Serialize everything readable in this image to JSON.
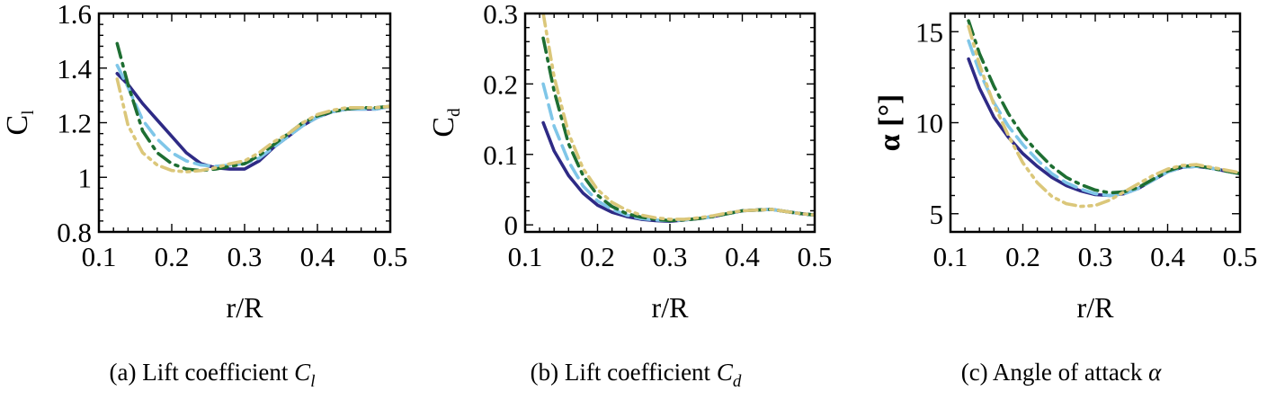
{
  "chart_data": [
    {
      "type": "line",
      "caption": "(a) Lift coefficient C_l",
      "caption_parts": {
        "prefix": "(a) Lift coefficient ",
        "symbol": "C",
        "subscript": "l"
      },
      "xlabel": "r/R",
      "ylabel": "C",
      "ylabel_sub": "l",
      "xlim": [
        0.1,
        0.5
      ],
      "ylim": [
        0.8,
        1.6
      ],
      "xticks": [
        "0.1",
        "0.2",
        "0.3",
        "0.4",
        "0.5"
      ],
      "yticks": [
        "0.8",
        "1",
        "1.2",
        "1.4",
        "1.6"
      ],
      "grid": false,
      "series": [
        {
          "style": "solid",
          "color": "#2e2a85",
          "x": [
            0.125,
            0.14,
            0.16,
            0.18,
            0.2,
            0.22,
            0.24,
            0.26,
            0.28,
            0.3,
            0.32,
            0.34,
            0.36,
            0.38,
            0.4,
            0.42,
            0.44,
            0.46,
            0.48,
            0.5
          ],
          "y": [
            1.38,
            1.34,
            1.27,
            1.21,
            1.15,
            1.09,
            1.05,
            1.035,
            1.03,
            1.03,
            1.06,
            1.11,
            1.15,
            1.19,
            1.22,
            1.24,
            1.25,
            1.25,
            1.25,
            1.26
          ]
        },
        {
          "style": "dashed",
          "color": "#7fc6e8",
          "x": [
            0.125,
            0.14,
            0.16,
            0.18,
            0.2,
            0.22,
            0.24,
            0.26,
            0.28,
            0.3,
            0.32,
            0.34,
            0.36,
            0.38,
            0.4,
            0.42,
            0.44,
            0.46,
            0.48,
            0.5
          ],
          "y": [
            1.41,
            1.33,
            1.21,
            1.14,
            1.09,
            1.06,
            1.045,
            1.04,
            1.045,
            1.05,
            1.07,
            1.11,
            1.15,
            1.19,
            1.22,
            1.24,
            1.25,
            1.25,
            1.25,
            1.26
          ]
        },
        {
          "style": "dashdot",
          "color": "#1e6e32",
          "x": [
            0.125,
            0.14,
            0.16,
            0.18,
            0.2,
            0.22,
            0.24,
            0.26,
            0.28,
            0.3,
            0.32,
            0.34,
            0.36,
            0.38,
            0.4,
            0.42,
            0.44,
            0.46,
            0.48,
            0.5
          ],
          "y": [
            1.49,
            1.34,
            1.17,
            1.09,
            1.05,
            1.03,
            1.025,
            1.03,
            1.04,
            1.05,
            1.08,
            1.12,
            1.16,
            1.2,
            1.225,
            1.24,
            1.25,
            1.255,
            1.255,
            1.26
          ]
        },
        {
          "style": "dashdotdot",
          "color": "#dbc77a",
          "x": [
            0.125,
            0.14,
            0.16,
            0.18,
            0.2,
            0.22,
            0.24,
            0.26,
            0.28,
            0.3,
            0.32,
            0.34,
            0.36,
            0.38,
            0.4,
            0.42,
            0.44,
            0.46,
            0.48,
            0.5
          ],
          "y": [
            1.36,
            1.19,
            1.09,
            1.045,
            1.025,
            1.02,
            1.025,
            1.035,
            1.05,
            1.06,
            1.09,
            1.13,
            1.16,
            1.2,
            1.23,
            1.245,
            1.255,
            1.255,
            1.255,
            1.26
          ]
        }
      ]
    },
    {
      "type": "line",
      "caption": "(b) Lift coefficient C_d",
      "caption_parts": {
        "prefix": "(b) Lift coefficient ",
        "symbol": "C",
        "subscript": "d"
      },
      "xlabel": "r/R",
      "ylabel": "C",
      "ylabel_sub": "d",
      "xlim": [
        0.1,
        0.5
      ],
      "ylim": [
        -0.01,
        0.3
      ],
      "xticks": [
        "0.1",
        "0.2",
        "0.3",
        "0.4",
        "0.5"
      ],
      "yticks": [
        "0",
        "0.1",
        "0.2",
        "0.3"
      ],
      "ytick_values": [
        0,
        0.1,
        0.2,
        0.3
      ],
      "grid": false,
      "series": [
        {
          "style": "solid",
          "color": "#2e2a85",
          "x": [
            0.125,
            0.14,
            0.16,
            0.18,
            0.2,
            0.22,
            0.24,
            0.26,
            0.28,
            0.3,
            0.32,
            0.34,
            0.36,
            0.38,
            0.4,
            0.42,
            0.44,
            0.46,
            0.48,
            0.5
          ],
          "y": [
            0.145,
            0.105,
            0.07,
            0.045,
            0.028,
            0.018,
            0.012,
            0.008,
            0.006,
            0.005,
            0.007,
            0.009,
            0.012,
            0.016,
            0.02,
            0.021,
            0.022,
            0.019,
            0.016,
            0.014
          ]
        },
        {
          "style": "dashed",
          "color": "#7fc6e8",
          "x": [
            0.125,
            0.14,
            0.16,
            0.18,
            0.2,
            0.22,
            0.24,
            0.26,
            0.28,
            0.3,
            0.32,
            0.34,
            0.36,
            0.38,
            0.4,
            0.42,
            0.44,
            0.46,
            0.48,
            0.5
          ],
          "y": [
            0.2,
            0.14,
            0.09,
            0.055,
            0.034,
            0.022,
            0.014,
            0.009,
            0.007,
            0.006,
            0.007,
            0.009,
            0.012,
            0.016,
            0.02,
            0.021,
            0.022,
            0.019,
            0.016,
            0.014
          ]
        },
        {
          "style": "dashdot",
          "color": "#1e6e32",
          "x": [
            0.125,
            0.14,
            0.16,
            0.18,
            0.2,
            0.22,
            0.24,
            0.26,
            0.28,
            0.3,
            0.32,
            0.34,
            0.36,
            0.38,
            0.4,
            0.42,
            0.44,
            0.46,
            0.48,
            0.5
          ],
          "y": [
            0.265,
            0.19,
            0.115,
            0.07,
            0.042,
            0.026,
            0.016,
            0.011,
            0.008,
            0.006,
            0.007,
            0.009,
            0.012,
            0.016,
            0.02,
            0.021,
            0.022,
            0.019,
            0.016,
            0.014
          ]
        },
        {
          "style": "dashdotdot",
          "color": "#dbc77a",
          "x": [
            0.125,
            0.14,
            0.16,
            0.18,
            0.2,
            0.22,
            0.24,
            0.26,
            0.28,
            0.3,
            0.32,
            0.34,
            0.36,
            0.38,
            0.4,
            0.42,
            0.44,
            0.46,
            0.48,
            0.5
          ],
          "y": [
            0.3,
            0.21,
            0.13,
            0.08,
            0.05,
            0.032,
            0.021,
            0.014,
            0.01,
            0.008,
            0.008,
            0.01,
            0.013,
            0.017,
            0.02,
            0.021,
            0.022,
            0.019,
            0.016,
            0.014
          ]
        }
      ]
    },
    {
      "type": "line",
      "caption": "(c) Angle of attack α",
      "caption_parts": {
        "prefix": "(c) Angle of attack ",
        "symbol": "α",
        "subscript": ""
      },
      "xlabel": "r/R",
      "ylabel": "α [°]",
      "ylabel_sub": "",
      "xlim": [
        0.1,
        0.5
      ],
      "ylim": [
        4,
        16
      ],
      "xticks": [
        "0.1",
        "0.2",
        "0.3",
        "0.4",
        "0.5"
      ],
      "yticks": [
        "5",
        "10",
        "15"
      ],
      "ytick_values": [
        5,
        10,
        15
      ],
      "grid": false,
      "series": [
        {
          "style": "solid",
          "color": "#2e2a85",
          "x": [
            0.125,
            0.14,
            0.16,
            0.18,
            0.2,
            0.22,
            0.24,
            0.26,
            0.28,
            0.3,
            0.32,
            0.34,
            0.36,
            0.38,
            0.4,
            0.42,
            0.44,
            0.46,
            0.48,
            0.5
          ],
          "y": [
            13.5,
            11.9,
            10.3,
            9.2,
            8.3,
            7.6,
            7.0,
            6.55,
            6.25,
            6.05,
            6.0,
            6.1,
            6.4,
            6.85,
            7.3,
            7.55,
            7.6,
            7.5,
            7.35,
            7.2
          ]
        },
        {
          "style": "dashed",
          "color": "#7fc6e8",
          "x": [
            0.125,
            0.14,
            0.16,
            0.18,
            0.2,
            0.22,
            0.24,
            0.26,
            0.28,
            0.3,
            0.32,
            0.34,
            0.36,
            0.38,
            0.4,
            0.42,
            0.44,
            0.46,
            0.48,
            0.5
          ],
          "y": [
            14.5,
            12.8,
            11.1,
            9.8,
            8.8,
            7.95,
            7.2,
            6.7,
            6.35,
            6.1,
            6.0,
            6.1,
            6.4,
            6.85,
            7.3,
            7.55,
            7.6,
            7.5,
            7.35,
            7.2
          ]
        },
        {
          "style": "dashdot",
          "color": "#1e6e32",
          "x": [
            0.125,
            0.14,
            0.16,
            0.18,
            0.2,
            0.22,
            0.24,
            0.26,
            0.28,
            0.3,
            0.32,
            0.34,
            0.36,
            0.38,
            0.4,
            0.42,
            0.44,
            0.46,
            0.48,
            0.5
          ],
          "y": [
            15.6,
            13.8,
            12.0,
            10.5,
            9.3,
            8.4,
            7.6,
            7.0,
            6.6,
            6.3,
            6.15,
            6.2,
            6.45,
            6.9,
            7.35,
            7.6,
            7.65,
            7.5,
            7.35,
            7.2
          ]
        },
        {
          "style": "dashdotdot",
          "color": "#dbc77a",
          "x": [
            0.125,
            0.14,
            0.16,
            0.18,
            0.2,
            0.22,
            0.24,
            0.26,
            0.28,
            0.3,
            0.32,
            0.34,
            0.36,
            0.38,
            0.4,
            0.42,
            0.44,
            0.46,
            0.48,
            0.5
          ],
          "y": [
            15.3,
            13.2,
            11.0,
            9.3,
            7.8,
            6.7,
            5.95,
            5.55,
            5.4,
            5.45,
            5.75,
            6.2,
            6.65,
            7.1,
            7.45,
            7.65,
            7.7,
            7.55,
            7.4,
            7.25
          ]
        }
      ]
    }
  ]
}
